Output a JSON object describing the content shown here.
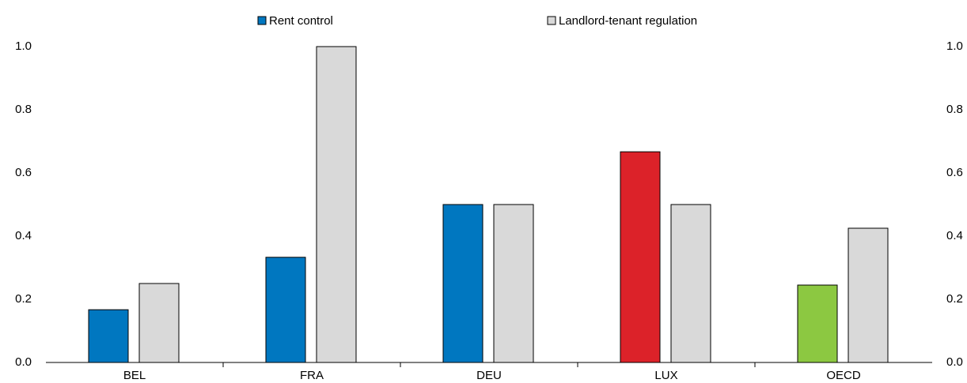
{
  "chart_data": {
    "type": "bar",
    "categories": [
      "BEL",
      "FRA",
      "DEU",
      "LUX",
      "OECD"
    ],
    "series": [
      {
        "name": "Rent control",
        "color": "#0077c0",
        "colors": [
          "#0077c0",
          "#0077c0",
          "#0077c0",
          "#dc2229",
          "#8cc841"
        ],
        "values": [
          0.167,
          0.333,
          0.5,
          0.667,
          0.245
        ]
      },
      {
        "name": "Landlord-tenant regulation",
        "color": "#d9d9d9",
        "colors": [
          "#d9d9d9",
          "#d9d9d9",
          "#d9d9d9",
          "#d9d9d9",
          "#d9d9d9"
        ],
        "values": [
          0.25,
          1.0,
          0.5,
          0.5,
          0.425
        ]
      }
    ],
    "ylim": [
      0,
      1.0
    ],
    "yticks": [
      {
        "value": 0,
        "label": "0.0"
      },
      {
        "value": 0.2,
        "label": "0.2"
      },
      {
        "value": 0.4,
        "label": "0.4"
      },
      {
        "value": 0.6,
        "label": "0.6"
      },
      {
        "value": 0.8,
        "label": "0.8"
      },
      {
        "value": 1.0,
        "label": "1.0"
      }
    ],
    "grid": false,
    "legend": "top"
  }
}
